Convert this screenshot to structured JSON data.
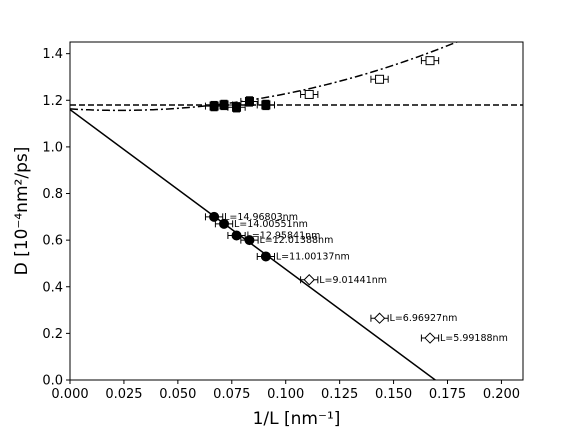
{
  "chart_data": {
    "type": "scatter",
    "title": "",
    "xlabel": "1/L [nm⁻¹]",
    "ylabel": "D [10⁻⁴nm²/ps]",
    "xlim": [
      0.0,
      0.21
    ],
    "ylim": [
      0.0,
      1.45
    ],
    "x_ticks": [
      0.0,
      0.025,
      0.05,
      0.075,
      0.1,
      0.125,
      0.15,
      0.175,
      0.2
    ],
    "x_tick_labels": [
      "0.000",
      "0.025",
      "0.050",
      "0.075",
      "0.100",
      "0.125",
      "0.150",
      "0.175",
      "0.200"
    ],
    "y_ticks": [
      0.0,
      0.2,
      0.4,
      0.6,
      0.8,
      1.0,
      1.2,
      1.4
    ],
    "y_tick_labels": [
      "0.0",
      "0.2",
      "0.4",
      "0.6",
      "0.8",
      "1.0",
      "1.2",
      "1.4"
    ],
    "grid": false,
    "series": [
      {
        "marker": "circle-filled",
        "color": "#000000",
        "points": [
          {
            "x": 0.0668,
            "y": 0.7,
            "xerr": 0.004,
            "label": "L=14.96803nm"
          },
          {
            "x": 0.0714,
            "y": 0.67,
            "xerr": 0.004,
            "label": "L=14.00551nm"
          },
          {
            "x": 0.0772,
            "y": 0.62,
            "xerr": 0.004,
            "label": "L=12.95841nm"
          },
          {
            "x": 0.0832,
            "y": 0.6,
            "xerr": 0.004,
            "label": "L=12.01388nm"
          },
          {
            "x": 0.0908,
            "y": 0.53,
            "xerr": 0.004,
            "label": "L=11.00137nm"
          }
        ]
      },
      {
        "marker": "diamond-open",
        "color": "#000000",
        "points": [
          {
            "x": 0.1109,
            "y": 0.43,
            "xerr": 0.004,
            "label": "L=9.01441nm"
          },
          {
            "x": 0.1435,
            "y": 0.265,
            "xerr": 0.004,
            "label": "L=6.96927nm"
          },
          {
            "x": 0.1669,
            "y": 0.18,
            "xerr": 0.004,
            "label": "L=5.99188nm"
          }
        ]
      },
      {
        "marker": "square-filled",
        "color": "#000000",
        "points": [
          {
            "x": 0.0668,
            "y": 1.175,
            "xerr": 0.004,
            "yerr": 0.02
          },
          {
            "x": 0.0714,
            "y": 1.18,
            "xerr": 0.004,
            "yerr": 0.02
          },
          {
            "x": 0.0772,
            "y": 1.17,
            "xerr": 0.004,
            "yerr": 0.02
          },
          {
            "x": 0.0832,
            "y": 1.195,
            "xerr": 0.004,
            "yerr": 0.02
          },
          {
            "x": 0.0908,
            "y": 1.18,
            "xerr": 0.004,
            "yerr": 0.02
          }
        ]
      },
      {
        "marker": "square-open",
        "color": "#000000",
        "points": [
          {
            "x": 0.1109,
            "y": 1.225,
            "xerr": 0.004,
            "yerr": 0.01
          },
          {
            "x": 0.1435,
            "y": 1.29,
            "xerr": 0.004,
            "yerr": 0.01
          },
          {
            "x": 0.1669,
            "y": 1.37,
            "xerr": 0.004,
            "yerr": 0.01
          }
        ]
      }
    ],
    "fits": [
      {
        "style": "solid",
        "type": "linear",
        "intercept": 1.16,
        "slope": -6.85
      },
      {
        "style": "dashed",
        "type": "constant",
        "value": 1.18
      },
      {
        "style": "dashdot",
        "type": "quadratic",
        "a": 1.163,
        "b": -0.55,
        "c": 12.0
      }
    ]
  }
}
